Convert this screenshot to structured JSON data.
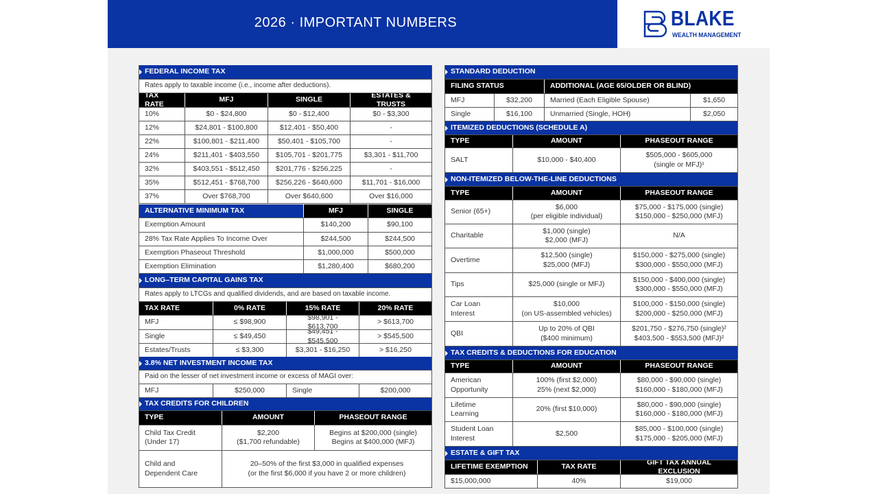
{
  "header": {
    "title": "2026 · IMPORTANT NUMBERS",
    "logo_name": "BLAKE",
    "logo_sub": "WEALTH MANAGEMENT",
    "brand_color": "#0a33a3"
  },
  "federal_income_tax": {
    "title": "FEDERAL INCOME TAX",
    "note": "Rates apply to taxable income (i.e., income after deductions).",
    "columns": [
      "TAX RATE",
      "MFJ",
      "SINGLE",
      "ESTATES & TRUSTS"
    ],
    "rows": [
      [
        "10%",
        "$0 - $24,800",
        "$0 - $12,400",
        "$0 - $3,300"
      ],
      [
        "12%",
        "$24,801 - $100,800",
        "$12,401 - $50,400",
        "-"
      ],
      [
        "22%",
        "$100,801 - $211,400",
        "$50,401 - $105,700",
        "-"
      ],
      [
        "24%",
        "$211,401 - $403,550",
        "$105,701 - $201,775",
        "$3,301 - $11,700"
      ],
      [
        "32%",
        "$403,551 - $512,450",
        "$201,776 - $256,225",
        "-"
      ],
      [
        "35%",
        "$512,451 - $768,700",
        "$256,226 - $640,600",
        "$11,701 - $16,000"
      ],
      [
        "37%",
        "Over $768,700",
        "Over $640,600",
        "Over $16,000"
      ]
    ]
  },
  "amt": {
    "title": "ALTERNATIVE MINIMUM TAX",
    "columns": [
      "MFJ",
      "SINGLE"
    ],
    "rows": [
      [
        "Exemption Amount",
        "$140,200",
        "$90,100"
      ],
      [
        "28% Tax Rate Applies To Income Over",
        "$244,500",
        "$244,500"
      ],
      [
        "Exemption Phaseout Threshold",
        "$1,000,000",
        "$500,000"
      ],
      [
        "Exemption Elimination",
        "$1,280,400",
        "$680,200"
      ]
    ]
  },
  "ltcg": {
    "title": "LONG–TERM CAPITAL GAINS TAX",
    "note": "Rates apply to LTCGs and qualified dividends, and are based on taxable income.",
    "columns": [
      "TAX RATE",
      "0% RATE",
      "15% RATE",
      "20% RATE"
    ],
    "rows": [
      [
        "MFJ",
        "≤ $98,900",
        "$98,901 - $613,700",
        "> $613,700"
      ],
      [
        "Single",
        "≤ $49,450",
        "$49,451 - $545,500",
        "> $545,500"
      ],
      [
        "Estates/Trusts",
        "≤ $3,300",
        "$3,301 - $16,250",
        "> $16,250"
      ]
    ]
  },
  "niit": {
    "title": "3.8% NET INVESTMENT INCOME TAX",
    "note": "Paid on the lesser of net investment income or excess of MAGI over:",
    "rows": [
      [
        "MFJ",
        "$250,000",
        "Single",
        "$200,000"
      ]
    ]
  },
  "children": {
    "title": "TAX CREDITS FOR CHILDREN",
    "columns": [
      "TYPE",
      "AMOUNT",
      "PHASEOUT RANGE"
    ],
    "rows": [
      [
        "Child Tax Credit\n(Under 17)",
        "$2,200\n($1,700 refundable)",
        "Begins at $200,000 (single)\nBegins at $400,000 (MFJ)"
      ],
      [
        "Child and\nDependent Care",
        "20–50% of the first $3,000 in qualified expenses\n(or the first $6,000 if you have 2 or more children)"
      ]
    ]
  },
  "standard_deduction": {
    "title": "STANDARD DEDUCTION",
    "columns": [
      "FILING STATUS",
      "ADDITIONAL (AGE 65/OLDER OR BLIND)"
    ],
    "rows": [
      [
        "MFJ",
        "$32,200",
        "Married (Each Eligible Spouse)",
        "$1,650"
      ],
      [
        "Single",
        "$16,100",
        "Unmarried (Single, HOH)",
        "$2,050"
      ]
    ]
  },
  "itemized": {
    "title": "ITEMIZED DEDUCTIONS (SCHEDULE A)",
    "columns": [
      "TYPE",
      "AMOUNT",
      "PHASEOUT RANGE"
    ],
    "rows": [
      [
        "SALT",
        "$10,000 - $40,400",
        "$505,000 - $605,000\n(single or MFJ)¹"
      ]
    ]
  },
  "non_itemized": {
    "title": "NON-ITEMIZED BELOW-THE-LINE DEDUCTIONS",
    "columns": [
      "TYPE",
      "AMOUNT",
      "PHASEOUT RANGE"
    ],
    "rows": [
      [
        "Senior (65+)",
        "$6,000\n(per eligible individual)",
        "$75,000 - $175,000 (single)\n$150,000 - $250,000 (MFJ)"
      ],
      [
        "Charitable",
        "$1,000 (single)\n$2,000 (MFJ)",
        "N/A"
      ],
      [
        "Overtime",
        "$12,500 (single)\n$25,000 (MFJ)",
        "$150,000 - $275,000 (single)\n$300,000 - $550,000 (MFJ)"
      ],
      [
        "Tips",
        "$25,000 (single or MFJ)",
        "$150,000 - $400,000 (single)\n$300,000 - $550,000 (MFJ)"
      ],
      [
        "Car Loan\nInterest",
        "$10,000\n(on US-assembled vehicles)",
        "$100,000 - $150,000 (single)\n$200,000 - $250,000 (MFJ)"
      ],
      [
        "QBI",
        "Up to 20% of QBI\n($400 minimum)",
        "$201,750 - $276,750 (single)²\n$403,500 - $553,500 (MFJ)²"
      ]
    ]
  },
  "education": {
    "title": "TAX CREDITS & DEDUCTIONS FOR EDUCATION",
    "columns": [
      "TYPE",
      "AMOUNT",
      "PHASEOUT RANGE"
    ],
    "rows": [
      [
        "American\nOpportunity",
        "100% (first $2,000)\n25% (next $2,000)",
        "$80,000 - $90,000 (single)\n$160,000 - $180,000 (MFJ)"
      ],
      [
        "Lifetime\nLearning",
        "20% (first $10,000)",
        "$80,000 - $90,000 (single)\n$160,000 - $180,000 (MFJ)"
      ],
      [
        "Student Loan\nInterest",
        "$2,500",
        "$85,000 - $100,000 (single)\n$175,000 - $205,000 (MFJ)"
      ]
    ]
  },
  "estate_gift": {
    "title": "ESTATE & GIFT TAX",
    "columns": [
      "LIFETIME EXEMPTION",
      "TAX RATE",
      "GIFT TAX ANNUAL EXCLUSION"
    ],
    "rows": [
      [
        "$15,000,000",
        "40%",
        "$19,000"
      ]
    ]
  }
}
